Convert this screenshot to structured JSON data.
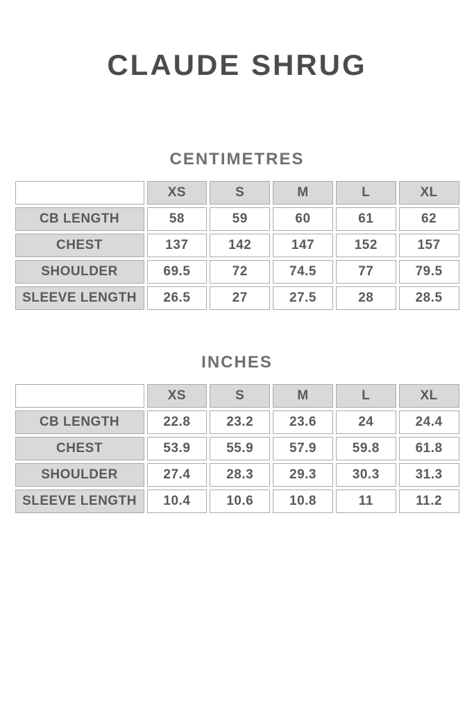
{
  "page": {
    "title": "CLAUDE SHRUG"
  },
  "colors": {
    "page-bg": "#ffffff",
    "title-color": "#4c4c4c",
    "heading-color": "#6f6f6f",
    "cell-text": "#58595b",
    "cell-bg-gray": "#d9d9d9",
    "cell-bg-white": "#ffffff",
    "border-color": "#a9a9a9"
  },
  "tables": [
    {
      "heading": "CENTIMETRES",
      "sizes": [
        "XS",
        "S",
        "M",
        "L",
        "XL"
      ],
      "rows": [
        {
          "label": "CB LENGTH",
          "values": [
            "58",
            "59",
            "60",
            "61",
            "62"
          ]
        },
        {
          "label": "CHEST",
          "values": [
            "137",
            "142",
            "147",
            "152",
            "157"
          ]
        },
        {
          "label": "SHOULDER",
          "values": [
            "69.5",
            "72",
            "74.5",
            "77",
            "79.5"
          ]
        },
        {
          "label": "SLEEVE LENGTH",
          "values": [
            "26.5",
            "27",
            "27.5",
            "28",
            "28.5"
          ]
        }
      ]
    },
    {
      "heading": "INCHES",
      "sizes": [
        "XS",
        "S",
        "M",
        "L",
        "XL"
      ],
      "rows": [
        {
          "label": "CB LENGTH",
          "values": [
            "22.8",
            "23.2",
            "23.6",
            "24",
            "24.4"
          ]
        },
        {
          "label": "CHEST",
          "values": [
            "53.9",
            "55.9",
            "57.9",
            "59.8",
            "61.8"
          ]
        },
        {
          "label": "SHOULDER",
          "values": [
            "27.4",
            "28.3",
            "29.3",
            "30.3",
            "31.3"
          ]
        },
        {
          "label": "SLEEVE LENGTH",
          "values": [
            "10.4",
            "10.6",
            "10.8",
            "11",
            "11.2"
          ]
        }
      ]
    }
  ]
}
